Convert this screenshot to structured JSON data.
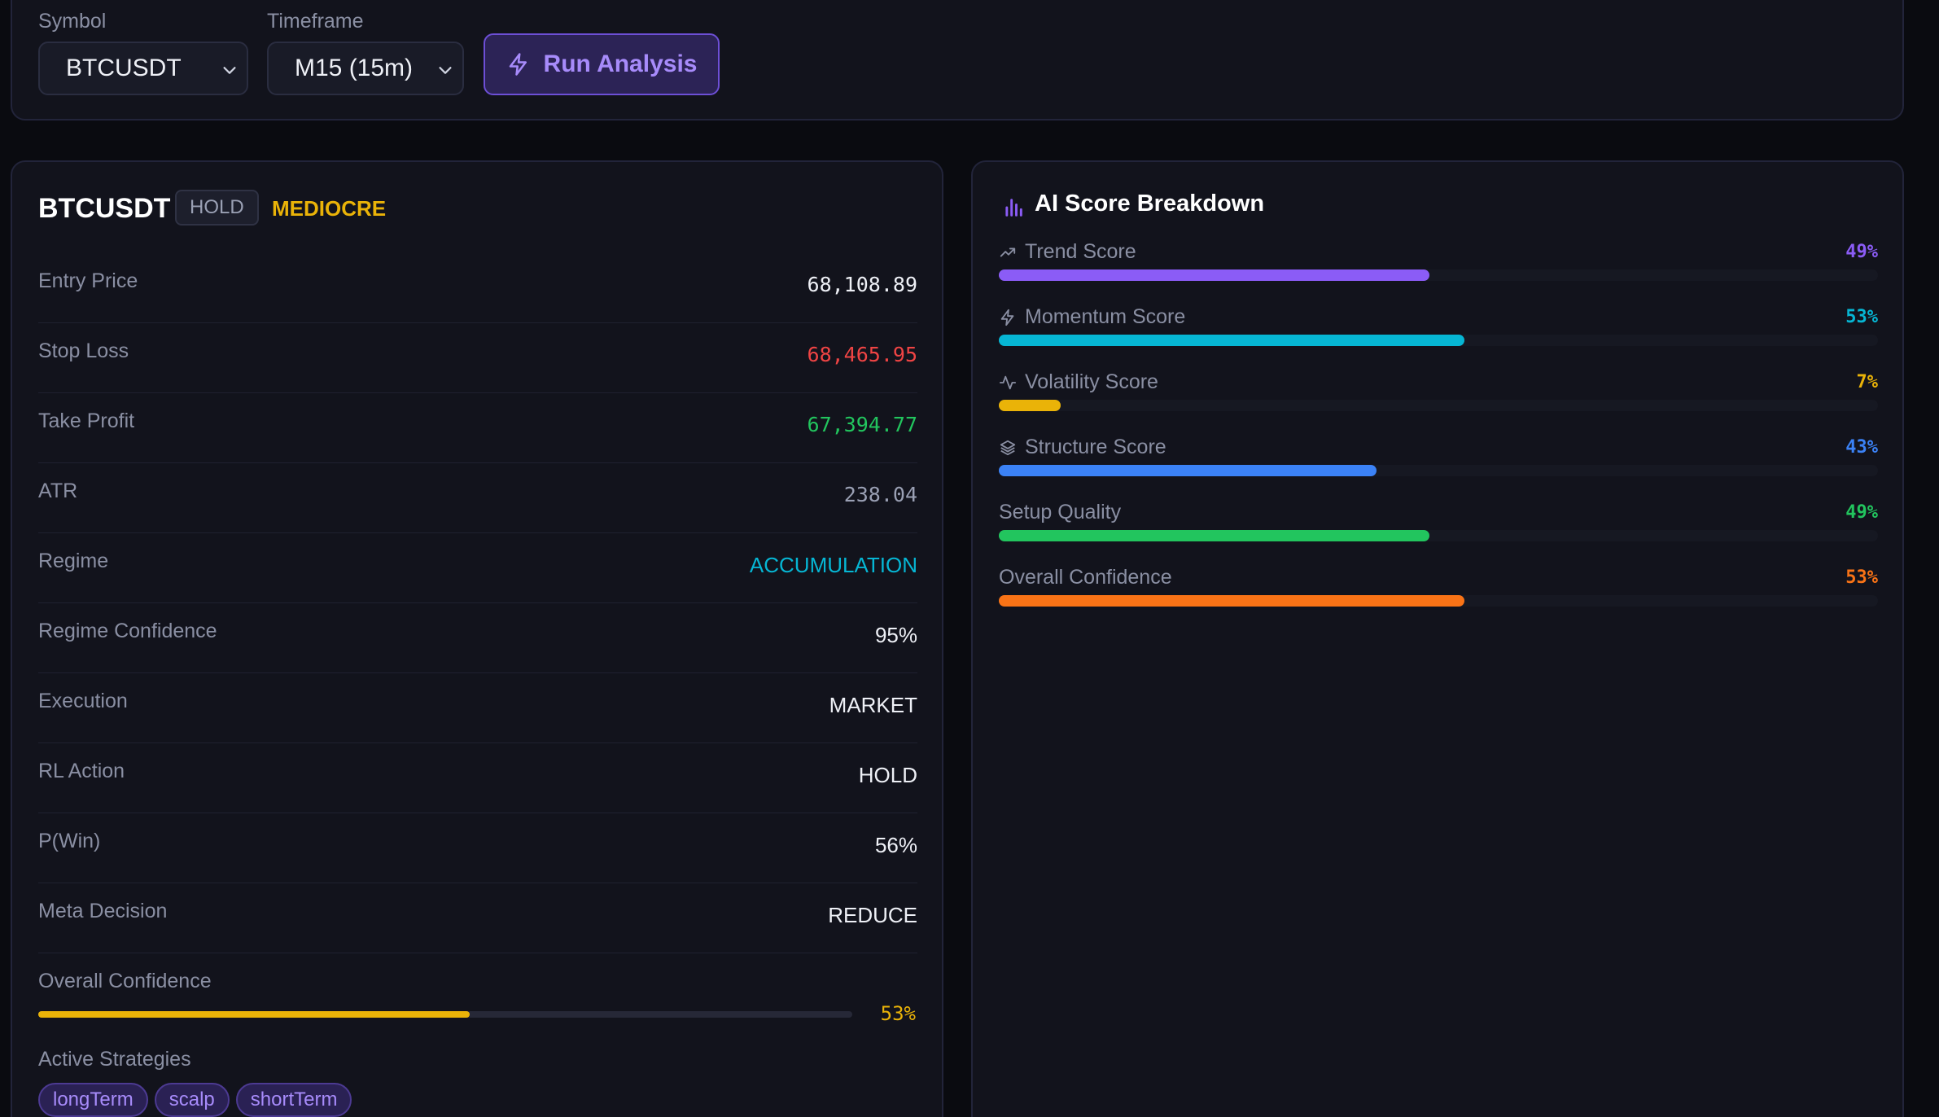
{
  "controls": {
    "symbol_label": "Symbol",
    "symbol_value": "BTCUSDT",
    "timeframe_label": "Timeframe",
    "timeframe_value": "M15 (15m)",
    "run_button": "Run Analysis"
  },
  "summary": {
    "symbol": "BTCUSDT",
    "action_badge": "HOLD",
    "quality_badge": "MEDIOCRE",
    "rows": [
      {
        "label": "Entry Price",
        "value": "68,108.89"
      },
      {
        "label": "Stop Loss",
        "value": "68,465.95"
      },
      {
        "label": "Take Profit",
        "value": "67,394.77"
      },
      {
        "label": "ATR",
        "value": "238.04"
      },
      {
        "label": "Regime",
        "value": "ACCUMULATION"
      },
      {
        "label": "Regime Confidence",
        "value": "95%"
      },
      {
        "label": "Execution",
        "value": "MARKET"
      },
      {
        "label": "RL Action",
        "value": "HOLD"
      },
      {
        "label": "P(Win)",
        "value": "56%"
      },
      {
        "label": "Meta Decision",
        "value": "REDUCE"
      }
    ],
    "overall_confidence_label": "Overall Confidence",
    "overall_confidence_pct": "53%",
    "overall_confidence_value": 53,
    "active_strategies_label": "Active Strategies",
    "strategies": [
      "longTerm",
      "scalp",
      "shortTerm"
    ]
  },
  "breakdown": {
    "title": "AI Score Breakdown",
    "scores": [
      {
        "label": "Trend Score",
        "pct": "49%",
        "value": 49,
        "color": "#8b5cf6",
        "icon": "trend-up-icon"
      },
      {
        "label": "Momentum Score",
        "pct": "53%",
        "value": 53,
        "color": "#06b6d4",
        "icon": "lightning-icon"
      },
      {
        "label": "Volatility Score",
        "pct": "7%",
        "value": 7,
        "color": "#eab308",
        "icon": "activity-icon"
      },
      {
        "label": "Structure Score",
        "pct": "43%",
        "value": 43,
        "color": "#3b82f6",
        "icon": "layers-icon"
      },
      {
        "label": "Setup Quality",
        "pct": "49%",
        "value": 49,
        "color": "#22c55e",
        "icon": ""
      },
      {
        "label": "Overall Confidence",
        "pct": "53%",
        "value": 53,
        "color": "#f97316",
        "icon": ""
      }
    ]
  }
}
